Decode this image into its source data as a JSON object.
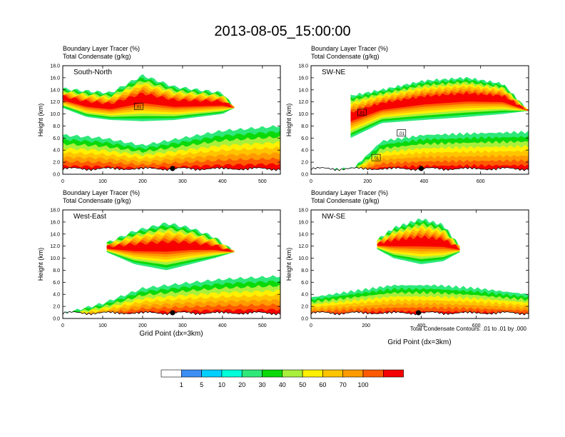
{
  "figure": {
    "title": "2013-08-05_15:00:00",
    "contour_note": "Total Condensate Contours: .01 to .01 by .000"
  },
  "colorbar": {
    "labels": [
      "1",
      "5",
      "10",
      "20",
      "30",
      "40",
      "50",
      "60",
      "70",
      "100"
    ],
    "colors": [
      "#ffffff",
      "#3d8ef5",
      "#00cfff",
      "#00ffd8",
      "#2ee87a",
      "#0ad90a",
      "#a8f03c",
      "#fff000",
      "#ffc400",
      "#ff9a00",
      "#ff5a00",
      "#f60000"
    ]
  },
  "chart_data": [
    {
      "type": "heatmap",
      "panel_label": "South-North",
      "title": "Boundary Layer Tracer   (%)",
      "subtitle": "Total Condensate   (g/kg)",
      "xlabel": "",
      "ylabel": "Height (km)",
      "xlim": [
        0,
        545
      ],
      "ylim": [
        0,
        18
      ],
      "x_ticks": [
        0,
        100,
        200,
        300,
        400,
        500
      ],
      "y_ticks": [
        "0.0",
        "2.0",
        "4.0",
        "6.0",
        "8.0",
        "10.0",
        "12.0",
        "14.0",
        "16.0",
        "18.0"
      ],
      "marker_x": 275,
      "contour_labels": [
        {
          "x": 190,
          "y": 11.2,
          "text": ".01"
        }
      ],
      "layers": [
        {
          "level": "low",
          "x": [
            0,
            100,
            200,
            300,
            400,
            545
          ],
          "top": [
            6.5,
            6.0,
            4.8,
            6.0,
            7.2,
            8.0
          ]
        },
        {
          "level": "upper",
          "x": [
            0,
            60,
            120,
            200,
            280,
            340,
            400,
            430
          ],
          "bottom": [
            11.0,
            9.5,
            9.0,
            8.8,
            9.0,
            9.5,
            10.0,
            11.0
          ],
          "top": [
            14.2,
            13.8,
            13.5,
            16.4,
            14.5,
            14.0,
            13.5,
            11.0
          ]
        }
      ]
    },
    {
      "type": "heatmap",
      "panel_label": "SW-NE",
      "title": "Boundary Layer Tracer   (%)",
      "subtitle": "Total Condensate   (g/kg)",
      "xlabel": "",
      "ylabel": "Height (km)",
      "xlim": [
        0,
        770
      ],
      "ylim": [
        0,
        18
      ],
      "x_ticks": [
        0,
        200,
        400,
        600
      ],
      "y_ticks": [
        "0.0",
        "2.0",
        "4.0",
        "6.0",
        "8.0",
        "10.0",
        "12.0",
        "14.0",
        "16.0",
        "18.0"
      ],
      "marker_x": 390,
      "contour_labels": [
        {
          "x": 180,
          "y": 10.2,
          "text": ".01"
        },
        {
          "x": 230,
          "y": 2.7,
          "text": ".01"
        },
        {
          "x": 320,
          "y": 6.8,
          "text": ".01"
        }
      ],
      "layers": [
        {
          "level": "low",
          "x": [
            0,
            150,
            250,
            400,
            600,
            770
          ],
          "top": [
            0.6,
            1.0,
            5.5,
            6.5,
            6.8,
            7.0
          ]
        },
        {
          "level": "upper",
          "x": [
            140,
            250,
            400,
            550,
            680,
            770
          ],
          "bottom": [
            6.0,
            8.5,
            9.0,
            9.5,
            10.0,
            10.5
          ],
          "top": [
            13.0,
            14.0,
            15.5,
            16.0,
            15.0,
            10.5
          ]
        }
      ]
    },
    {
      "type": "heatmap",
      "panel_label": "West-East",
      "title": "Boundary Layer Tracer   (%)",
      "subtitle": "Total Condensate   (g/kg)",
      "xlabel": "Grid Point (dx=3km)",
      "ylabel": "Height (km)",
      "xlim": [
        0,
        545
      ],
      "ylim": [
        0,
        18
      ],
      "x_ticks": [
        0,
        100,
        200,
        300,
        400,
        500
      ],
      "y_ticks": [
        "0.0",
        "2.0",
        "4.0",
        "6.0",
        "8.0",
        "10.0",
        "12.0",
        "14.0",
        "16.0",
        "18.0"
      ],
      "marker_x": 275,
      "contour_labels": [],
      "layers": [
        {
          "level": "low",
          "x": [
            0,
            100,
            200,
            300,
            400,
            545
          ],
          "top": [
            0.8,
            2.5,
            5.0,
            5.8,
            6.5,
            7.0
          ]
        },
        {
          "level": "upper",
          "x": [
            110,
            180,
            260,
            320,
            380,
            430
          ],
          "bottom": [
            11.0,
            9.0,
            8.0,
            9.0,
            10.0,
            11.0
          ],
          "top": [
            12.5,
            14.5,
            15.8,
            15.0,
            13.5,
            11.0
          ]
        }
      ]
    },
    {
      "type": "heatmap",
      "panel_label": "NW-SE",
      "title": "Boundary Layer Tracer   (%)",
      "subtitle": "Total Condensate   (g/kg)",
      "xlabel": "Grid Point (dx=3km)",
      "ylabel": "Height (km)",
      "xlim": [
        0,
        790
      ],
      "ylim": [
        0,
        18
      ],
      "x_ticks": [
        0,
        200,
        400,
        600
      ],
      "y_ticks": [
        "0.0",
        "2.0",
        "4.0",
        "6.0",
        "8.0",
        "10.0",
        "12.0",
        "14.0",
        "16.0",
        "18.0"
      ],
      "marker_x": 390,
      "contour_labels": [],
      "layers": [
        {
          "level": "low",
          "x": [
            0,
            150,
            300,
            450,
            600,
            790
          ],
          "top": [
            3.5,
            4.5,
            5.5,
            5.5,
            5.0,
            4.0
          ]
        },
        {
          "level": "upper",
          "x": [
            240,
            300,
            400,
            480,
            540
          ],
          "bottom": [
            11.5,
            10.0,
            9.0,
            9.5,
            11.0
          ],
          "top": [
            13.0,
            15.0,
            16.5,
            15.5,
            12.0
          ]
        }
      ]
    }
  ]
}
